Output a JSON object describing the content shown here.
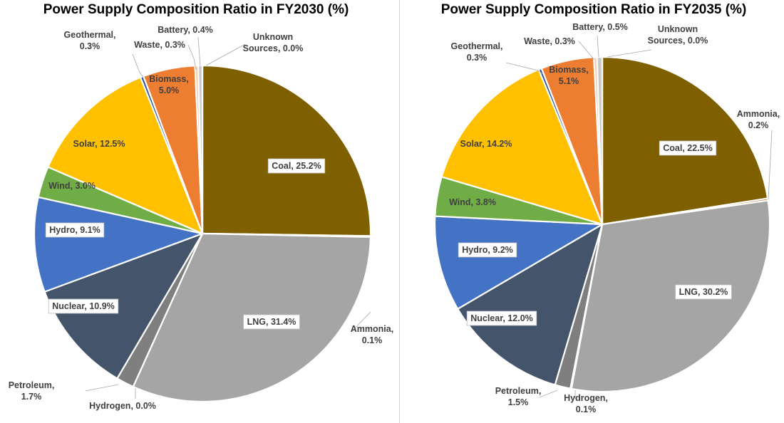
{
  "chart_data": [
    {
      "type": "pie",
      "title": "Power Supply Composition Ratio in FY2030 (%)",
      "start": "top, clockwise",
      "slices": [
        {
          "name": "Coal",
          "value": 25.2,
          "label": "Coal, 25.2%",
          "color": "#7f6000"
        },
        {
          "name": "Ammonia",
          "value": 0.1,
          "label": "Ammonia,\n0.1%",
          "color": "#c55a11"
        },
        {
          "name": "LNG",
          "value": 31.4,
          "label": "LNG, 31.4%",
          "color": "#a5a5a5"
        },
        {
          "name": "Hydrogen",
          "value": 0.0,
          "label": "Hydrogen, 0.0%",
          "color": "#9dc3e6"
        },
        {
          "name": "Petroleum",
          "value": 1.7,
          "label": "Petroleum,\n1.7%",
          "color": "#7f7f7f"
        },
        {
          "name": "Nuclear",
          "value": 10.9,
          "label": "Nuclear, 10.9%",
          "color": "#44546a"
        },
        {
          "name": "Hydro",
          "value": 9.1,
          "label": "Hydro, 9.1%",
          "color": "#4472c4"
        },
        {
          "name": "Wind",
          "value": 3.0,
          "label": "Wind, 3.0%",
          "color": "#70ad47"
        },
        {
          "name": "Solar",
          "value": 12.5,
          "label": "Solar, 12.5%",
          "color": "#ffc000"
        },
        {
          "name": "Geothermal",
          "value": 0.3,
          "label": "Geothermal,\n0.3%",
          "color": "#2f5597"
        },
        {
          "name": "Biomass",
          "value": 5.0,
          "label": "Biomass,\n5.0%",
          "color": "#ed7d31"
        },
        {
          "name": "Waste",
          "value": 0.3,
          "label": "Waste, 0.3%",
          "color": "#f8cbad"
        },
        {
          "name": "Battery",
          "value": 0.4,
          "label": "Battery, 0.4%",
          "color": "#c9c9c9"
        },
        {
          "name": "Unknown Sources",
          "value": 0.0,
          "label": "Unknown\nSources, 0.0%",
          "color": "#a9d18e"
        }
      ]
    },
    {
      "type": "pie",
      "title": "Power Supply Composition Ratio in FY2035 (%)",
      "start": "top, clockwise",
      "slices": [
        {
          "name": "Coal",
          "value": 22.5,
          "label": "Coal, 22.5%",
          "color": "#7f6000"
        },
        {
          "name": "Ammonia",
          "value": 0.2,
          "label": "Ammonia,\n0.2%",
          "color": "#c55a11"
        },
        {
          "name": "LNG",
          "value": 30.2,
          "label": "LNG, 30.2%",
          "color": "#a5a5a5"
        },
        {
          "name": "Hydrogen",
          "value": 0.1,
          "label": "Hydrogen,\n0.1%",
          "color": "#9dc3e6"
        },
        {
          "name": "Petroleum",
          "value": 1.5,
          "label": "Petroleum,\n1.5%",
          "color": "#7f7f7f"
        },
        {
          "name": "Nuclear",
          "value": 12.0,
          "label": "Nuclear, 12.0%",
          "color": "#44546a"
        },
        {
          "name": "Hydro",
          "value": 9.2,
          "label": "Hydro, 9.2%",
          "color": "#4472c4"
        },
        {
          "name": "Wind",
          "value": 3.8,
          "label": "Wind, 3.8%",
          "color": "#70ad47"
        },
        {
          "name": "Solar",
          "value": 14.2,
          "label": "Solar, 14.2%",
          "color": "#ffc000"
        },
        {
          "name": "Geothermal",
          "value": 0.3,
          "label": "Geothermal,\n0.3%",
          "color": "#2f5597"
        },
        {
          "name": "Biomass",
          "value": 5.1,
          "label": "Biomass,\n5.1%",
          "color": "#ed7d31"
        },
        {
          "name": "Waste",
          "value": 0.3,
          "label": "Waste, 0.3%",
          "color": "#f8cbad"
        },
        {
          "name": "Battery",
          "value": 0.5,
          "label": "Battery, 0.5%",
          "color": "#c9c9c9"
        },
        {
          "name": "Unknown Sources",
          "value": 0.0,
          "label": "Unknown\nSources, 0.0%",
          "color": "#a9d18e"
        }
      ]
    }
  ]
}
